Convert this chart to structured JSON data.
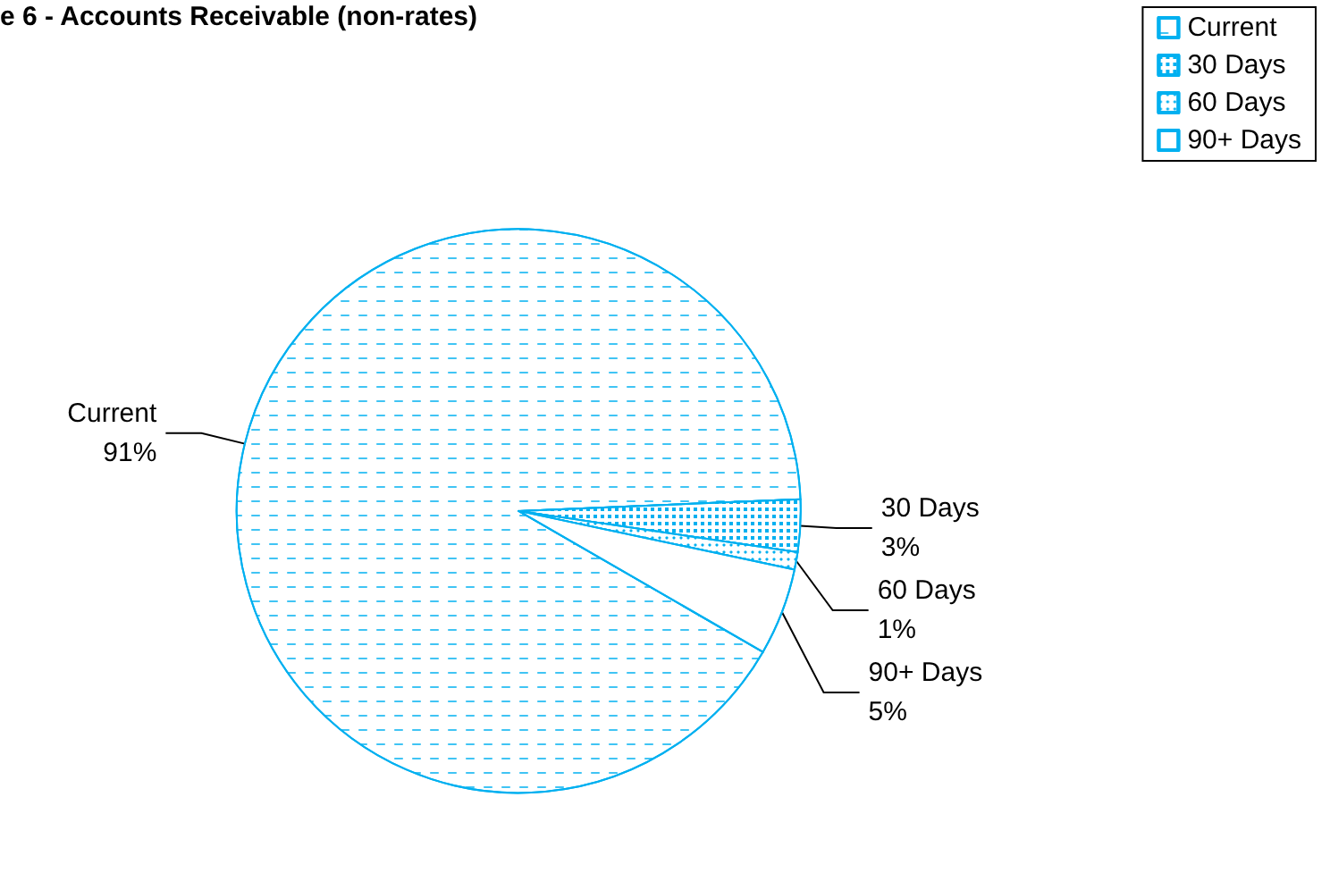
{
  "chart_data": {
    "type": "pie",
    "title": "e 6 - Accounts Receivable (non-rates)",
    "categories": [
      "Current",
      "30 Days",
      "60 Days",
      "90+ Days"
    ],
    "values": [
      91,
      3,
      1,
      5
    ],
    "value_labels": [
      "91%",
      "3%",
      "1%",
      "5%"
    ],
    "colors": [
      "#00b0f0",
      "#00b0f0",
      "#00b0f0",
      "#ffffff"
    ],
    "legend": "top right"
  }
}
